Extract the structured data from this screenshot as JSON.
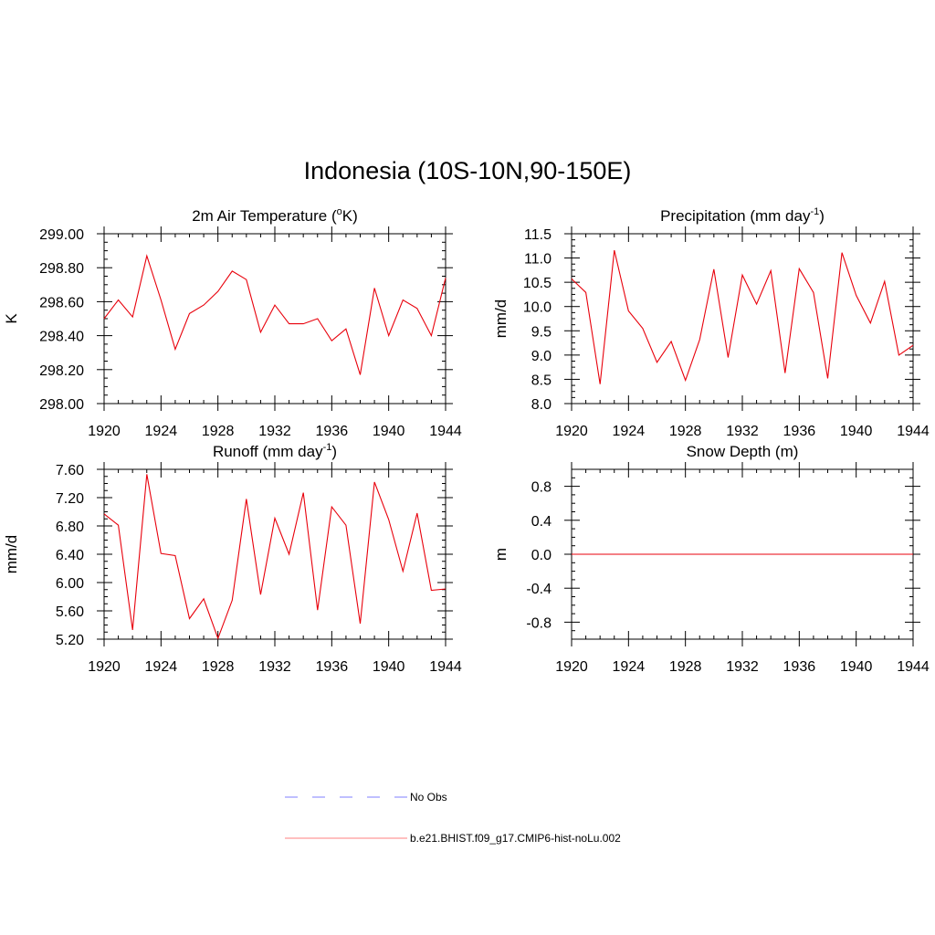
{
  "title": "Indonesia (10S-10N,90-150E)",
  "colors": {
    "model": "#e8000b",
    "obs": "#9999ff"
  },
  "chart_data": [
    {
      "type": "line",
      "title_main": "2m Air Temperature (",
      "title_sup": "o",
      "title_end": "K)",
      "ylabel": "K",
      "xlim": [
        1920,
        1944
      ],
      "ylim": [
        298.0,
        299.0
      ],
      "xticks": [
        "1920",
        "1924",
        "1928",
        "1932",
        "1936",
        "1940",
        "1944"
      ],
      "yticks": [
        "298.00",
        "298.20",
        "298.40",
        "298.60",
        "298.80",
        "299.00"
      ],
      "x": [
        1920,
        1921,
        1922,
        1923,
        1924,
        1925,
        1926,
        1927,
        1928,
        1929,
        1930,
        1931,
        1932,
        1933,
        1934,
        1935,
        1936,
        1937,
        1938,
        1939,
        1940,
        1941,
        1942,
        1943,
        1944
      ],
      "series": [
        {
          "values": [
            298.5,
            298.61,
            298.51,
            298.87,
            298.61,
            298.32,
            298.53,
            298.58,
            298.66,
            298.78,
            298.73,
            298.42,
            298.58,
            298.47,
            298.47,
            298.5,
            298.37,
            298.44,
            298.17,
            298.68,
            298.4,
            298.61,
            298.56,
            298.4,
            298.74
          ]
        }
      ]
    },
    {
      "type": "line",
      "title_main": "Precipitation (mm day",
      "title_sup": "-1",
      "title_end": ")",
      "ylabel": "mm/d",
      "xlim": [
        1920,
        1944
      ],
      "ylim": [
        8.0,
        11.5
      ],
      "xticks": [
        "1920",
        "1924",
        "1928",
        "1932",
        "1936",
        "1940",
        "1944"
      ],
      "yticks": [
        "8.0",
        "8.5",
        "9.0",
        "9.5",
        "10.0",
        "10.5",
        "11.0",
        "11.5"
      ],
      "x": [
        1920,
        1921,
        1922,
        1923,
        1924,
        1925,
        1926,
        1927,
        1928,
        1929,
        1930,
        1931,
        1932,
        1933,
        1934,
        1935,
        1936,
        1937,
        1938,
        1939,
        1940,
        1941,
        1942,
        1943,
        1944
      ],
      "series": [
        {
          "values": [
            10.57,
            10.29,
            8.4,
            11.16,
            9.91,
            9.55,
            8.85,
            9.28,
            8.48,
            9.32,
            10.77,
            8.95,
            10.65,
            10.05,
            10.74,
            8.63,
            10.78,
            10.29,
            8.52,
            11.11,
            10.23,
            9.66,
            10.52,
            9.0,
            9.2
          ]
        }
      ]
    },
    {
      "type": "line",
      "title_main": "Runoff (mm day",
      "title_sup": "-1",
      "title_end": ")",
      "ylabel": "mm/d",
      "xlim": [
        1920,
        1944
      ],
      "ylim": [
        5.2,
        7.6
      ],
      "xticks": [
        "1920",
        "1924",
        "1928",
        "1932",
        "1936",
        "1940",
        "1944"
      ],
      "yticks": [
        "5.20",
        "5.60",
        "6.00",
        "6.40",
        "6.80",
        "7.20",
        "7.60"
      ],
      "x": [
        1920,
        1921,
        1922,
        1923,
        1924,
        1925,
        1926,
        1927,
        1928,
        1929,
        1930,
        1931,
        1932,
        1933,
        1934,
        1935,
        1936,
        1937,
        1938,
        1939,
        1940,
        1941,
        1942,
        1943,
        1944
      ],
      "series": [
        {
          "values": [
            6.97,
            6.81,
            5.33,
            7.53,
            6.41,
            6.38,
            5.49,
            5.77,
            5.21,
            5.75,
            7.18,
            5.83,
            6.91,
            6.4,
            7.27,
            5.61,
            7.07,
            6.81,
            5.42,
            7.42,
            6.89,
            6.16,
            6.98,
            5.89,
            5.91
          ]
        }
      ]
    },
    {
      "type": "line",
      "title_main": "Snow Depth (m)",
      "title_sup": "",
      "title_end": "",
      "ylabel": "m",
      "xlim": [
        1920,
        1944
      ],
      "ylim": [
        -1.0,
        1.0
      ],
      "xticks": [
        "1920",
        "1924",
        "1928",
        "1932",
        "1936",
        "1940",
        "1944"
      ],
      "yticks": [
        "-0.8",
        "-0.4",
        "0.0",
        "0.4",
        "0.8"
      ],
      "ytick_values": [
        -0.8,
        -0.4,
        0.0,
        0.4,
        0.8
      ],
      "x": [
        1920,
        1944
      ],
      "series": [
        {
          "values": [
            0.0,
            0.0
          ]
        }
      ]
    }
  ],
  "legend": [
    {
      "label": "No Obs",
      "style": "dashed",
      "color": "#9999ff"
    },
    {
      "label": "b.e21.BHIST.f09_g17.CMIP6-hist-noLu.002",
      "style": "solid",
      "color": "#ff9999"
    }
  ]
}
